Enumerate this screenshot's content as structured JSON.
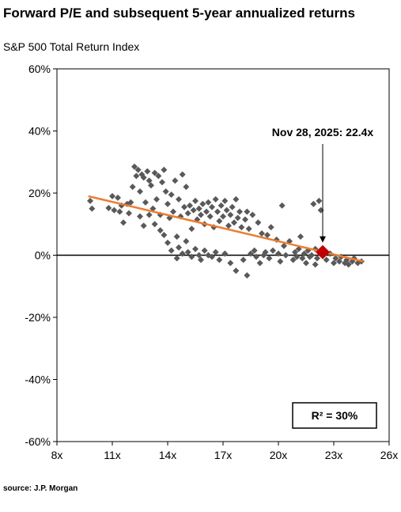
{
  "header": {
    "title": "Forward P/E and subsequent 5-year annualized returns",
    "subtitle": "S&P 500 Total Return Index"
  },
  "footer": {
    "source": "source: J.P. Morgan"
  },
  "chart_data": {
    "type": "scatter",
    "title": "Forward P/E and subsequent 5-year annualized returns",
    "subtitle": "S&P 500 Total Return Index",
    "xlabel": "",
    "ylabel": "",
    "xlim": [
      8,
      26
    ],
    "ylim": [
      -60,
      60
    ],
    "x_ticks": [
      8,
      11,
      14,
      17,
      20,
      23,
      26
    ],
    "x_tick_labels": [
      "8x",
      "11x",
      "14x",
      "17x",
      "20x",
      "23x",
      "26x"
    ],
    "y_ticks": [
      60,
      40,
      20,
      0,
      -20,
      -40,
      -60
    ],
    "y_tick_labels": [
      "60%",
      "40%",
      "20%",
      "0%",
      "-20%",
      "-40%",
      "-60%"
    ],
    "grid": false,
    "legend": "none",
    "marker_color": "#595959",
    "trend_color": "#ED7D31",
    "current_color": "#C00000",
    "series": [
      {
        "marker": "diamond",
        "points": [
          [
            9.8,
            17.5
          ],
          [
            9.9,
            15.0
          ],
          [
            10.8,
            15.2
          ],
          [
            11.0,
            19.0
          ],
          [
            11.1,
            14.5
          ],
          [
            11.3,
            18.5
          ],
          [
            11.4,
            14.0
          ],
          [
            11.5,
            16.0
          ],
          [
            11.6,
            10.5
          ],
          [
            11.8,
            16.5
          ],
          [
            11.9,
            13.5
          ],
          [
            12.0,
            17.0
          ],
          [
            12.1,
            22.0
          ],
          [
            12.2,
            28.5
          ],
          [
            12.3,
            25.5
          ],
          [
            12.4,
            27.5
          ],
          [
            12.5,
            12.5
          ],
          [
            12.5,
            20.5
          ],
          [
            12.6,
            26.0
          ],
          [
            12.7,
            25.0
          ],
          [
            12.7,
            9.5
          ],
          [
            12.8,
            17.0
          ],
          [
            12.9,
            27.0
          ],
          [
            13.0,
            13.0
          ],
          [
            13.0,
            24.0
          ],
          [
            13.1,
            22.5
          ],
          [
            13.2,
            15.0
          ],
          [
            13.3,
            26.5
          ],
          [
            13.3,
            10.0
          ],
          [
            13.4,
            18.0
          ],
          [
            13.5,
            25.5
          ],
          [
            13.6,
            13.0
          ],
          [
            13.6,
            8.0
          ],
          [
            13.7,
            23.5
          ],
          [
            13.8,
            27.5
          ],
          [
            13.8,
            6.5
          ],
          [
            13.9,
            20.5
          ],
          [
            14.0,
            4.0
          ],
          [
            14.0,
            16.5
          ],
          [
            14.1,
            12.0
          ],
          [
            14.2,
            19.5
          ],
          [
            14.2,
            1.5
          ],
          [
            14.3,
            14.0
          ],
          [
            14.4,
            24.0
          ],
          [
            14.5,
            6.0
          ],
          [
            14.5,
            -1.0
          ],
          [
            14.6,
            18.0
          ],
          [
            14.6,
            2.5
          ],
          [
            14.7,
            12.5
          ],
          [
            14.8,
            26.0
          ],
          [
            14.8,
            0.5
          ],
          [
            14.9,
            15.5
          ],
          [
            15.0,
            4.5
          ],
          [
            15.0,
            22.0
          ],
          [
            15.1,
            1.0
          ],
          [
            15.1,
            13.5
          ],
          [
            15.2,
            16.0
          ],
          [
            15.3,
            -0.5
          ],
          [
            15.3,
            8.5
          ],
          [
            15.4,
            14.5
          ],
          [
            15.5,
            2.0
          ],
          [
            15.5,
            17.5
          ],
          [
            15.6,
            11.5
          ],
          [
            15.7,
            0.0
          ],
          [
            15.7,
            15.0
          ],
          [
            15.8,
            -1.5
          ],
          [
            15.8,
            13.0
          ],
          [
            15.9,
            16.5
          ],
          [
            16.0,
            1.5
          ],
          [
            16.0,
            10.0
          ],
          [
            16.1,
            14.0
          ],
          [
            16.2,
            0.0
          ],
          [
            16.2,
            17.0
          ],
          [
            16.3,
            12.5
          ],
          [
            16.4,
            -0.5
          ],
          [
            16.4,
            15.5
          ],
          [
            16.5,
            9.0
          ],
          [
            16.6,
            18.0
          ],
          [
            16.6,
            1.0
          ],
          [
            16.7,
            14.0
          ],
          [
            16.8,
            11.0
          ],
          [
            16.8,
            -1.5
          ],
          [
            16.9,
            16.0
          ],
          [
            17.0,
            12.5
          ],
          [
            17.1,
            17.5
          ],
          [
            17.1,
            0.5
          ],
          [
            17.2,
            14.5
          ],
          [
            17.3,
            9.5
          ],
          [
            17.4,
            -2.5
          ],
          [
            17.4,
            13.0
          ],
          [
            17.5,
            15.5
          ],
          [
            17.6,
            10.5
          ],
          [
            17.7,
            18.0
          ],
          [
            17.7,
            -5.0
          ],
          [
            17.8,
            12.0
          ],
          [
            17.9,
            14.0
          ],
          [
            18.0,
            9.0
          ],
          [
            18.1,
            -1.5
          ],
          [
            18.2,
            11.5
          ],
          [
            18.3,
            14.0
          ],
          [
            18.3,
            -6.5
          ],
          [
            18.4,
            8.5
          ],
          [
            18.5,
            0.5
          ],
          [
            18.6,
            13.0
          ],
          [
            18.7,
            1.5
          ],
          [
            18.8,
            -0.5
          ],
          [
            18.9,
            10.5
          ],
          [
            19.0,
            -2.5
          ],
          [
            19.1,
            7.0
          ],
          [
            19.2,
            0.0
          ],
          [
            19.3,
            1.0
          ],
          [
            19.4,
            6.5
          ],
          [
            19.5,
            -1.0
          ],
          [
            19.6,
            9.0
          ],
          [
            19.7,
            1.5
          ],
          [
            19.9,
            5.0
          ],
          [
            20.0,
            0.5
          ],
          [
            20.1,
            -2.0
          ],
          [
            20.2,
            16.0
          ],
          [
            20.3,
            3.0
          ],
          [
            20.4,
            0.0
          ],
          [
            20.6,
            4.5
          ],
          [
            20.8,
            -1.5
          ],
          [
            20.9,
            1.0
          ],
          [
            21.0,
            -0.5
          ],
          [
            21.1,
            2.0
          ],
          [
            21.2,
            6.0
          ],
          [
            21.3,
            -1.0
          ],
          [
            21.4,
            0.5
          ],
          [
            21.5,
            -2.5
          ],
          [
            21.6,
            1.5
          ],
          [
            21.7,
            -0.5
          ],
          [
            21.8,
            0.0
          ],
          [
            21.9,
            16.5
          ],
          [
            22.0,
            2.0
          ],
          [
            22.0,
            -3.0
          ],
          [
            22.1,
            -1.0
          ],
          [
            22.2,
            17.5
          ],
          [
            22.3,
            14.5
          ],
          [
            22.4,
            0.0
          ],
          [
            22.6,
            -1.5
          ],
          [
            22.8,
            0.5
          ],
          [
            23.0,
            -2.5
          ],
          [
            23.1,
            -1.0
          ],
          [
            23.3,
            -2.0
          ],
          [
            23.4,
            -0.5
          ],
          [
            23.6,
            -2.5
          ],
          [
            23.7,
            -1.5
          ],
          [
            23.8,
            -3.0
          ],
          [
            24.0,
            -2.0
          ],
          [
            24.1,
            -1.0
          ],
          [
            24.3,
            -2.5
          ],
          [
            24.5,
            -2.0
          ]
        ]
      }
    ],
    "trendline": {
      "x": [
        9.7,
        24.6
      ],
      "y": [
        19.0,
        -2.0
      ]
    },
    "current": {
      "x": 22.4,
      "y": 1.0,
      "label": "Nov 28, 2025: 22.4x"
    },
    "r_squared_label": "R²  = 30%"
  }
}
